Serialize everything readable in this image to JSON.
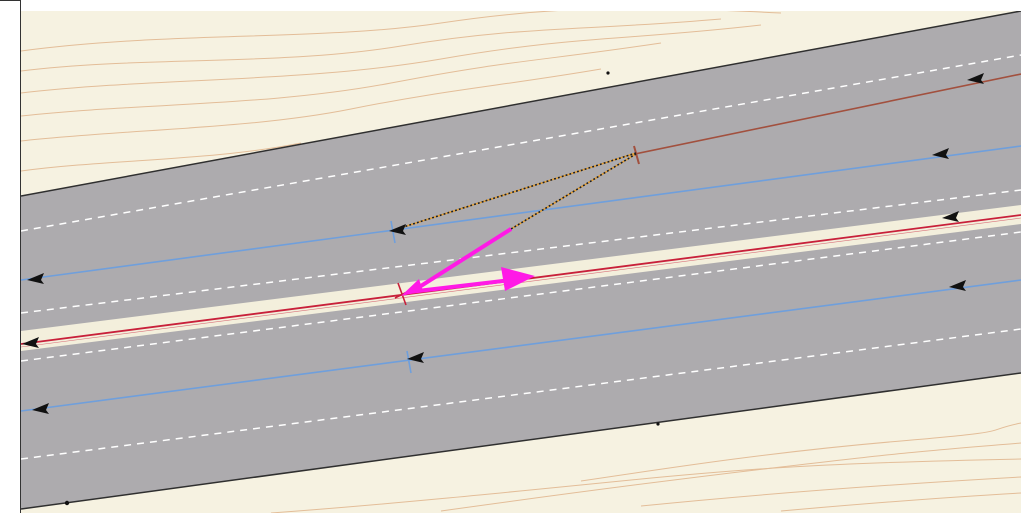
{
  "map": {
    "colors": {
      "terrain": "#f6f2e1",
      "contour": "#e3bd98",
      "road_surface": "#adabae",
      "road_edge": "#2f2f2f",
      "lane_dash": "#ffffff",
      "median": "#f3efdc",
      "blue_lane_line": "#6f9fdc",
      "red_lane_line": "#c8203a",
      "brown_lane_line": "#a2503e",
      "selection_arrow": "#ff1ae6",
      "dotted_link": "#1f1f1f",
      "orange_link": "#e8a030",
      "direction_arrow": "#111111"
    },
    "elements": {
      "lanes": [
        "upper-lane-blue",
        "median-lane-red",
        "lower-lane-blue",
        "upper-lane-brown"
      ],
      "icons": [
        "direction-arrow-icon",
        "lane-node-icon",
        "selection-vector-icon"
      ]
    }
  }
}
